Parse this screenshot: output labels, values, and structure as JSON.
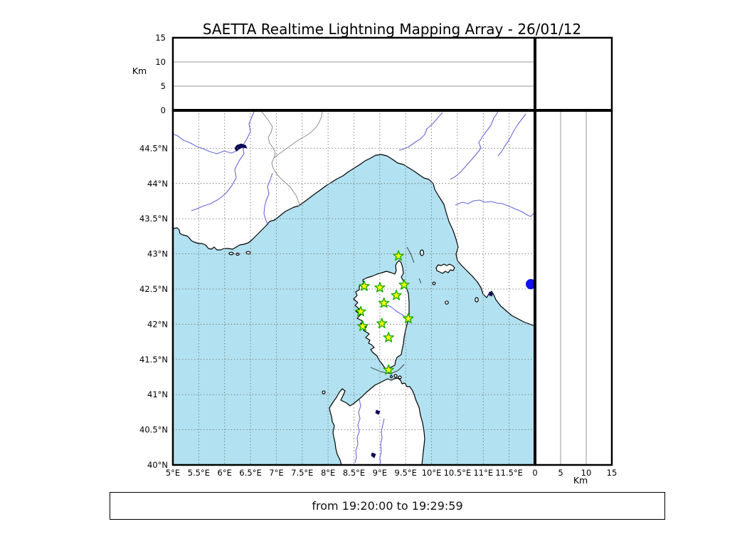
{
  "title": "SAETTA Realtime Lightning Mapping Array - 26/01/12",
  "footer": {
    "text": "from 19:20:00 to 19:29:59"
  },
  "colors": {
    "sea": "#b2e2f1",
    "land": "#ffffff",
    "coastline": "#000000",
    "river": "#6868d8",
    "admin_border": "#8f8f8f",
    "grid": "#777777",
    "panel_grid": "#999999",
    "star_fill": "#ffff00",
    "star_stroke": "#1aab00",
    "detection_dot": "#1012e8",
    "lake": "#0a0a55",
    "frame": "#000000"
  },
  "axes": {
    "altitude_left": {
      "label": "Km",
      "ticks": [
        {
          "label": "0",
          "value": 0
        },
        {
          "label": "5",
          "value": 5
        },
        {
          "label": "10",
          "value": 10
        },
        {
          "label": "15",
          "value": 15
        }
      ]
    },
    "altitude_bottom": {
      "label": "Km",
      "ticks": [
        {
          "label": "0",
          "value": 0
        },
        {
          "label": "5",
          "value": 5
        },
        {
          "label": "10",
          "value": 10
        },
        {
          "label": "15",
          "value": 15
        }
      ]
    },
    "lat_ticks": [
      {
        "label": "44.5°N",
        "value": 44.5
      },
      {
        "label": "44°N",
        "value": 44
      },
      {
        "label": "43.5°N",
        "value": 43.5
      },
      {
        "label": "43°N",
        "value": 43
      },
      {
        "label": "42.5°N",
        "value": 42.5
      },
      {
        "label": "42°N",
        "value": 42
      },
      {
        "label": "41.5°N",
        "value": 41.5
      },
      {
        "label": "41°N",
        "value": 41
      },
      {
        "label": "40.5°N",
        "value": 40.5
      },
      {
        "label": "40°N",
        "value": 40
      }
    ],
    "lon_ticks": [
      {
        "label": "5°E",
        "value": 5
      },
      {
        "label": "5.5°E",
        "value": 5.5
      },
      {
        "label": "6°E",
        "value": 6
      },
      {
        "label": "6.5°E",
        "value": 6.5
      },
      {
        "label": "7°E",
        "value": 7
      },
      {
        "label": "7.5°E",
        "value": 7.5
      },
      {
        "label": "8°E",
        "value": 8
      },
      {
        "label": "8.5°E",
        "value": 8.5
      },
      {
        "label": "9°E",
        "value": 9
      },
      {
        "label": "9.5°E",
        "value": 9.5
      },
      {
        "label": "10°E",
        "value": 10
      },
      {
        "label": "10.5°E",
        "value": 10.5
      },
      {
        "label": "11°E",
        "value": 11
      },
      {
        "label": "11.5°E",
        "value": 11.5
      }
    ]
  },
  "chart_data": {
    "type": "map",
    "title": "SAETTA Realtime Lightning Mapping Array - 26/01/12",
    "time_window": {
      "from": "19:20:00",
      "to": "19:29:59"
    },
    "extent": {
      "lon_min": 5,
      "lon_max": 12,
      "lat_min": 40,
      "lat_max": 45.04
    },
    "altitude_km_range": [
      0,
      15
    ],
    "altitude_grid_km": [
      5,
      10
    ],
    "grid": "dashed 0.5 degree",
    "stations": [
      {
        "lon": 9.36,
        "lat": 42.97
      },
      {
        "lon": 8.7,
        "lat": 42.54
      },
      {
        "lon": 9.0,
        "lat": 42.52
      },
      {
        "lon": 9.47,
        "lat": 42.56
      },
      {
        "lon": 9.32,
        "lat": 42.41
      },
      {
        "lon": 9.08,
        "lat": 42.3
      },
      {
        "lon": 8.63,
        "lat": 42.18
      },
      {
        "lon": 9.55,
        "lat": 42.08
      },
      {
        "lon": 9.04,
        "lat": 42.01
      },
      {
        "lon": 8.67,
        "lat": 41.97
      },
      {
        "lon": 9.17,
        "lat": 41.81
      },
      {
        "lon": 9.17,
        "lat": 41.35
      }
    ],
    "detections": [
      {
        "lon": 11.92,
        "lat": 42.57
      }
    ]
  }
}
